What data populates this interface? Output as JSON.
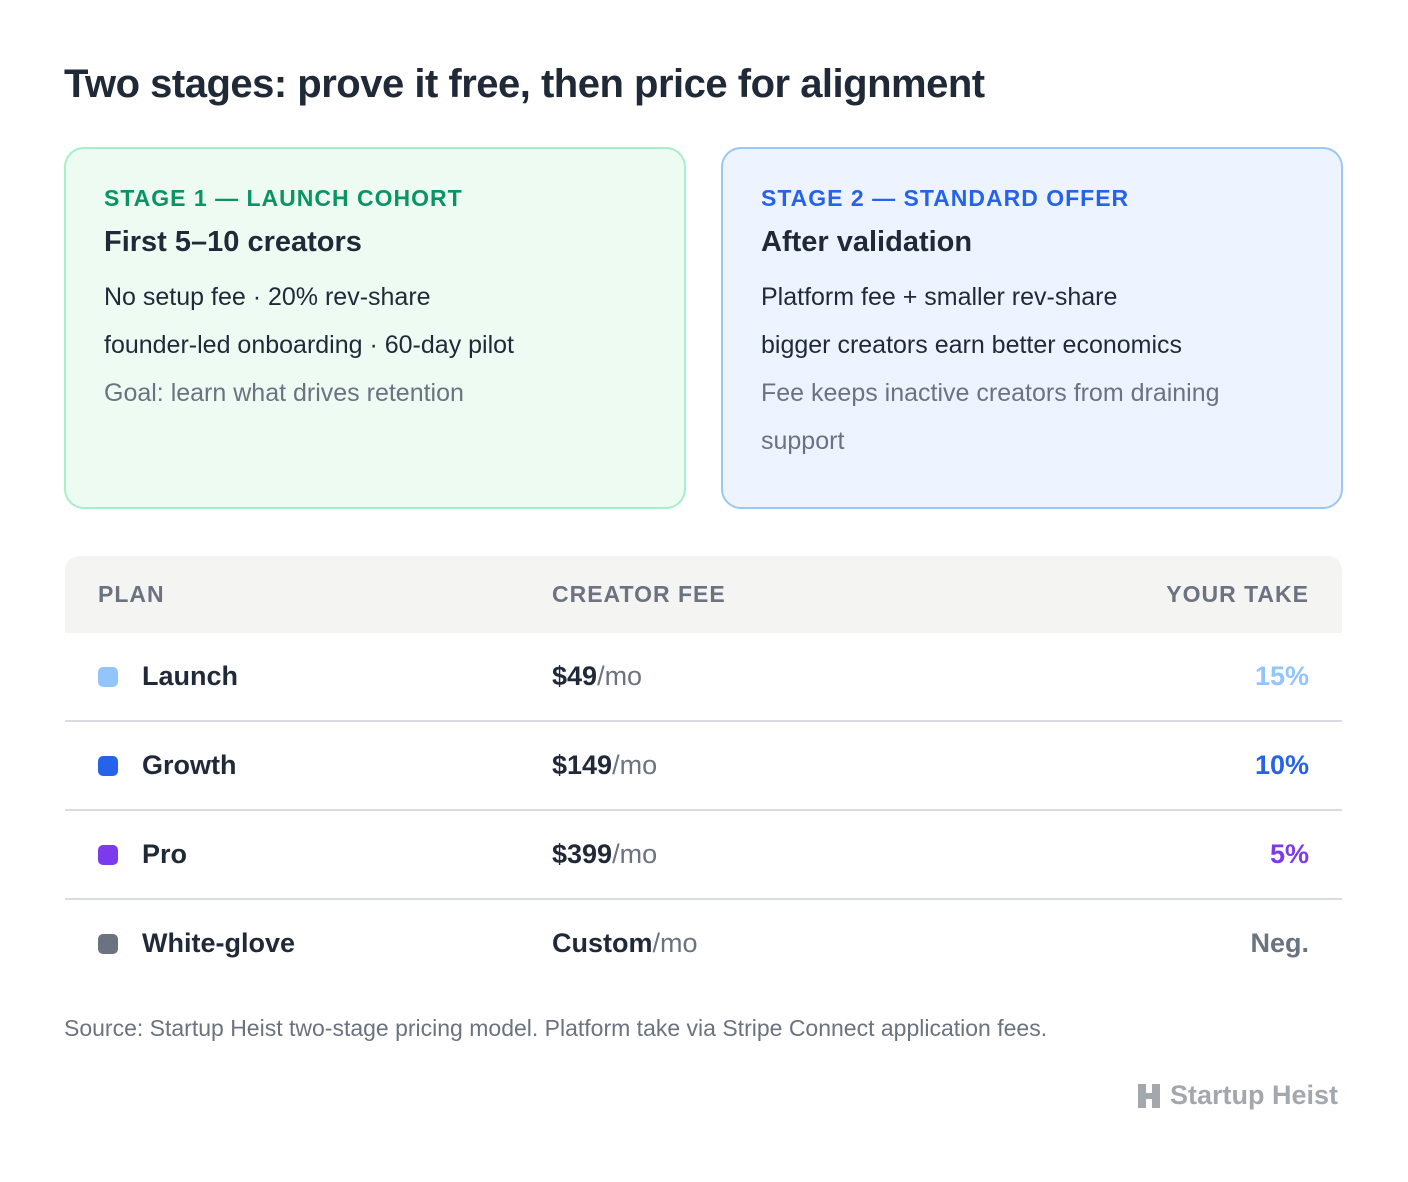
{
  "header": {
    "title": "Two stages: prove it free, then price for alignment"
  },
  "stages": [
    {
      "label": "STAGE 1 — LAUNCH COHORT",
      "heading": "First 5–10 creators",
      "lines": [
        "No setup fee · 20% rev-share",
        "founder-led onboarding · 60-day pilot"
      ],
      "note": "Goal: learn what drives retention"
    },
    {
      "label": "STAGE 2 — STANDARD OFFER",
      "heading": "After validation",
      "lines": [
        "Platform fee + smaller rev-share",
        "bigger creators earn better economics"
      ],
      "note": "Fee keeps inactive creators from draining support"
    }
  ],
  "table": {
    "columns": [
      "PLAN",
      "CREATOR FEE",
      "YOUR TAKE"
    ],
    "rows": [
      {
        "plan": "Launch",
        "fee": "$49",
        "unit": "/mo",
        "take": "15%",
        "color": "#93c5fd"
      },
      {
        "plan": "Growth",
        "fee": "$149",
        "unit": "/mo",
        "take": "10%",
        "color": "#2563eb"
      },
      {
        "plan": "Pro",
        "fee": "$399",
        "unit": "/mo",
        "take": "5%",
        "color": "#7c3aed"
      },
      {
        "plan": "White-glove",
        "fee": "Custom",
        "unit": "/mo",
        "take": "Neg.",
        "color": "#6b7280"
      }
    ]
  },
  "footer": {
    "source": "Source: Startup Heist two-stage pricing model. Platform take via Stripe Connect application fees.",
    "brand": "Startup Heist"
  }
}
